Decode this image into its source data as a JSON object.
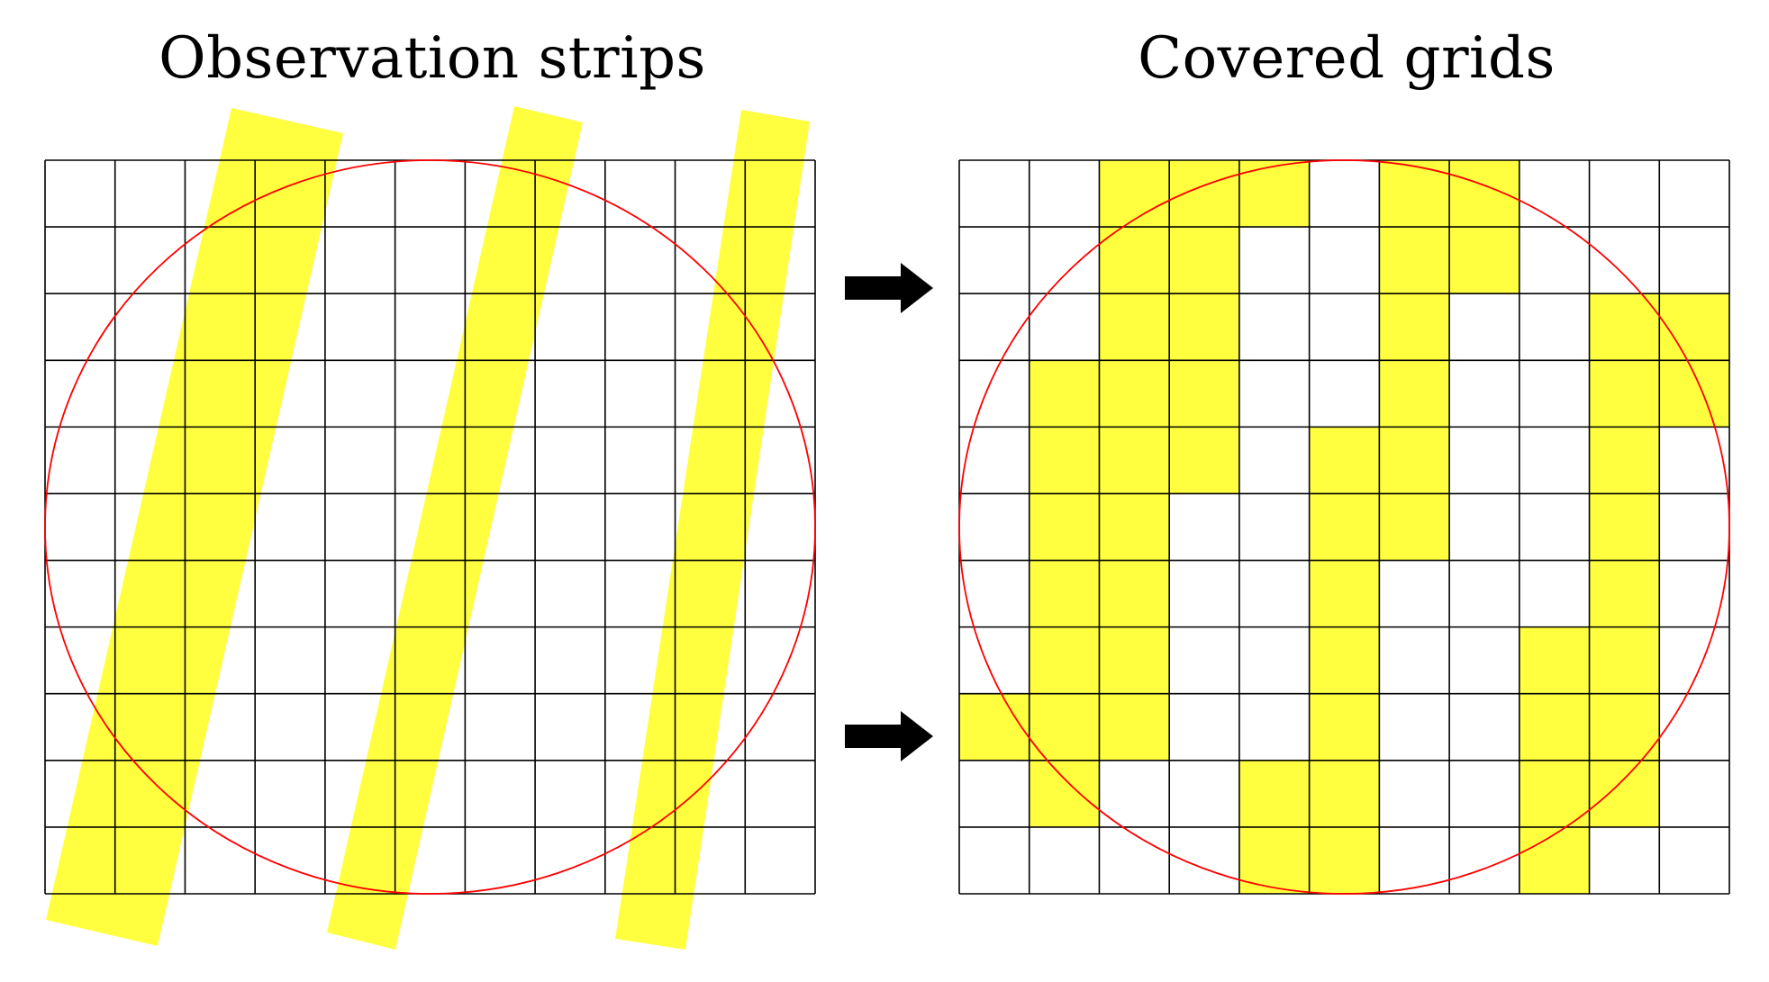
{
  "panels": {
    "left": {
      "title": "Observation strips"
    },
    "right": {
      "title": "Covered grids"
    }
  },
  "grid": {
    "rows": 11,
    "cols": 11
  },
  "colors": {
    "fill": "#ffff40",
    "circle": "#ff0000",
    "grid_line": "#000000",
    "arrow": "#000000",
    "background": "#ffffff"
  },
  "strips": [
    {
      "name": "strip-1"
    },
    {
      "name": "strip-2"
    },
    {
      "name": "strip-3"
    }
  ],
  "covered_cells": [
    [
      0,
      2
    ],
    [
      0,
      3
    ],
    [
      0,
      4
    ],
    [
      0,
      6
    ],
    [
      0,
      7
    ],
    [
      1,
      2
    ],
    [
      1,
      3
    ],
    [
      1,
      6
    ],
    [
      1,
      7
    ],
    [
      2,
      2
    ],
    [
      2,
      3
    ],
    [
      2,
      6
    ],
    [
      2,
      9
    ],
    [
      2,
      10
    ],
    [
      3,
      1
    ],
    [
      3,
      2
    ],
    [
      3,
      3
    ],
    [
      3,
      6
    ],
    [
      3,
      9
    ],
    [
      3,
      10
    ],
    [
      4,
      1
    ],
    [
      4,
      2
    ],
    [
      4,
      3
    ],
    [
      4,
      5
    ],
    [
      4,
      6
    ],
    [
      4,
      9
    ],
    [
      5,
      1
    ],
    [
      5,
      2
    ],
    [
      5,
      5
    ],
    [
      5,
      6
    ],
    [
      5,
      9
    ],
    [
      6,
      1
    ],
    [
      6,
      2
    ],
    [
      6,
      5
    ],
    [
      6,
      9
    ],
    [
      7,
      1
    ],
    [
      7,
      2
    ],
    [
      7,
      5
    ],
    [
      7,
      8
    ],
    [
      7,
      9
    ],
    [
      8,
      0
    ],
    [
      8,
      1
    ],
    [
      8,
      2
    ],
    [
      8,
      5
    ],
    [
      8,
      8
    ],
    [
      8,
      9
    ],
    [
      9,
      1
    ],
    [
      9,
      4
    ],
    [
      9,
      5
    ],
    [
      9,
      8
    ],
    [
      9,
      9
    ],
    [
      10,
      4
    ],
    [
      10,
      5
    ],
    [
      10,
      8
    ]
  ],
  "arrows": [
    {
      "name": "arrow-upper"
    },
    {
      "name": "arrow-lower"
    }
  ]
}
